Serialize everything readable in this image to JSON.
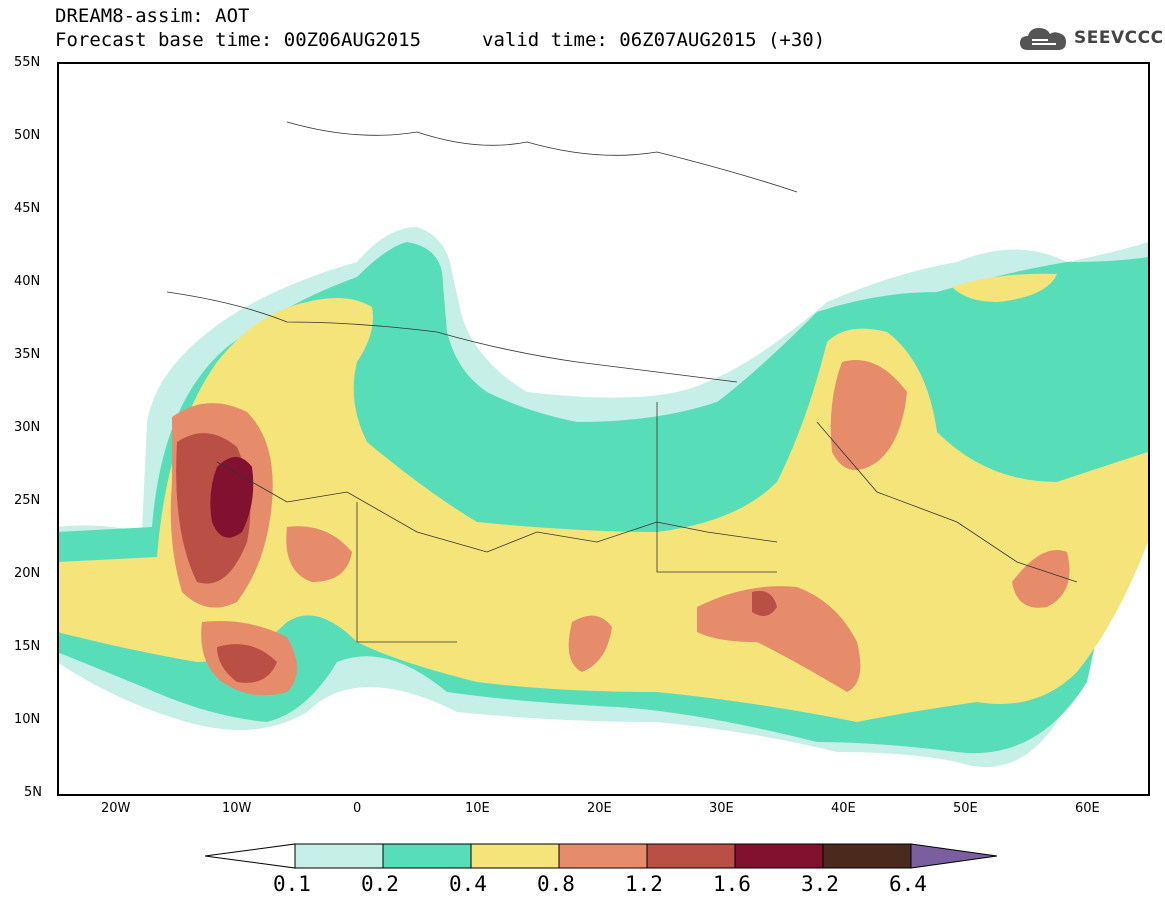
{
  "header": {
    "line1": "DREAM8-assim: AOT",
    "line2": "Forecast base time: 00Z06AUG2015",
    "line3": "valid time: 06Z07AUG2015 (+30)",
    "logo_text": "SEEVCCC",
    "logo_icon": "cloud-logo-icon"
  },
  "map": {
    "lat_labels": [
      "55N",
      "50N",
      "45N",
      "40N",
      "35N",
      "30N",
      "25N",
      "20N",
      "15N",
      "10N",
      "5N"
    ],
    "lon_labels": [
      "20W",
      "10W",
      "0",
      "10E",
      "20E",
      "30E",
      "40E",
      "50E",
      "60E"
    ],
    "colors": {
      "c01": "#c6efe7",
      "c02": "#57deb8",
      "c04": "#f5e47a",
      "c08": "#e68c6b",
      "c12": "#b94f45",
      "c16": "#82102f",
      "c32": "#4a2a1c",
      "c64": "#7b5ea0"
    }
  },
  "colorbar": {
    "labels": [
      "0.1",
      "0.2",
      "0.4",
      "0.8",
      "1.2",
      "1.6",
      "3.2",
      "6.4"
    ],
    "colors": [
      "#c6efe7",
      "#57deb8",
      "#f5e47a",
      "#e68c6b",
      "#b94f45",
      "#82102f",
      "#4a2a1c",
      "#7b5ea0"
    ]
  }
}
